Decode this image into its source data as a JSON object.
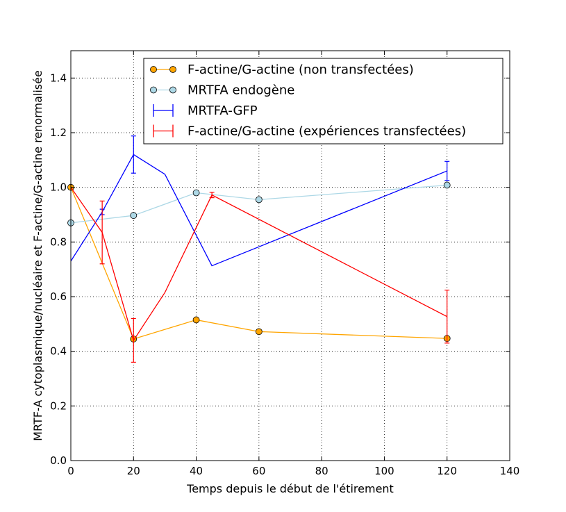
{
  "chart_data": {
    "type": "line",
    "xlabel": "Temps depuis le début de l'étirement",
    "ylabel": "MRTF-A cytoplasmique/nucléaire et F-actine/G-actine renormalisée",
    "xlim": [
      0,
      140
    ],
    "ylim": [
      0,
      1.5
    ],
    "xticks": [
      0,
      20,
      40,
      60,
      80,
      100,
      120,
      140
    ],
    "yticks": [
      0.0,
      0.2,
      0.4,
      0.6,
      0.8,
      1.0,
      1.2,
      1.4
    ],
    "xtick_labels": [
      "0",
      "20",
      "40",
      "60",
      "80",
      "100",
      "120",
      "140"
    ],
    "ytick_labels": [
      "0.0",
      "0.2",
      "0.4",
      "0.6",
      "0.8",
      "1.0",
      "1.2",
      "1.4"
    ],
    "grid": true,
    "legend_position": "top-right",
    "series": [
      {
        "name": "F-actine/G-actine (non transfectées)",
        "color": "#ffa500",
        "marker": "circle",
        "x": [
          0,
          20,
          40,
          60,
          120
        ],
        "y": [
          1.0,
          0.445,
          0.515,
          0.472,
          0.447
        ]
      },
      {
        "name": "MRTFA endogène",
        "color": "#add8e6",
        "marker": "circle",
        "x": [
          0,
          20,
          40,
          60,
          120
        ],
        "y": [
          0.87,
          0.897,
          0.98,
          0.955,
          1.008
        ]
      },
      {
        "name": "MRTFA-GFP",
        "color": "#0000ff",
        "marker": "errorbar",
        "x": [
          0,
          10,
          20,
          30,
          45,
          120
        ],
        "y": [
          0.73,
          0.91,
          1.12,
          1.048,
          0.713,
          1.06
        ],
        "err": [
          0.0,
          0.01,
          0.068,
          0.0,
          0.0,
          0.035
        ]
      },
      {
        "name": "F-actine/G-actine (expériences transfectées)",
        "color": "#ff0000",
        "marker": "errorbar",
        "x": [
          0,
          10,
          20,
          30,
          45,
          120
        ],
        "y": [
          1.0,
          0.835,
          0.44,
          0.615,
          0.972,
          0.527
        ],
        "err": [
          0.0,
          0.115,
          0.08,
          0.0,
          0.01,
          0.097
        ]
      }
    ]
  }
}
